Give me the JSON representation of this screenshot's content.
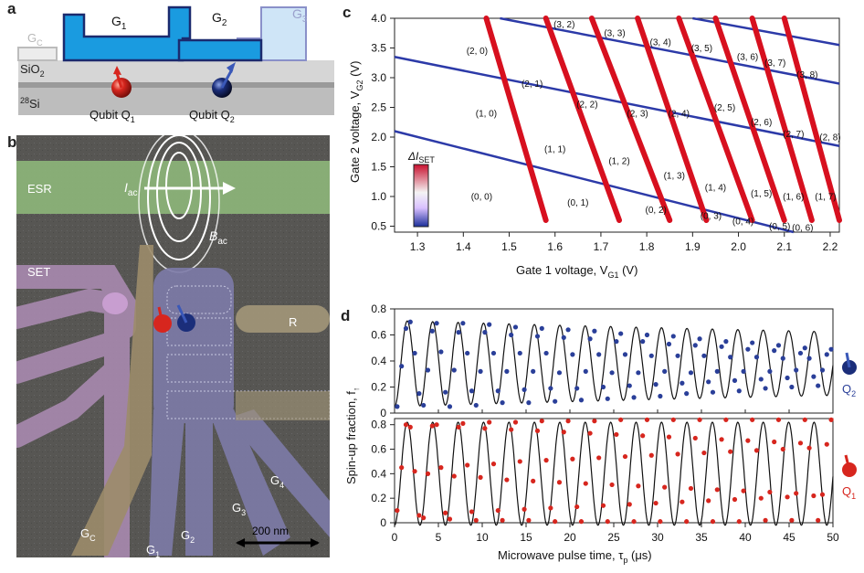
{
  "panels": {
    "a": "a",
    "b": "b",
    "c": "c",
    "d": "d"
  },
  "panel_a": {
    "gates": {
      "G1": "G",
      "G1_sub": "1",
      "G2": "G",
      "G2_sub": "2",
      "G3": "G",
      "G3_sub": "3",
      "GC": "G",
      "GC_sub": "C"
    },
    "oxide": "SiO",
    "oxide_sub": "2",
    "substrate_sup": "28",
    "substrate": "Si",
    "qubit1": "Qubit Q",
    "qubit1_sub": "1",
    "qubit2": "Qubit Q",
    "qubit2_sub": "2",
    "colors": {
      "gate": "#1a9be0",
      "gate_edge": "#1b2a6e",
      "gate3": "#cfe5f7",
      "gate3_edge": "#8a90c9",
      "gc": "#ececec",
      "oxide": "#d6d6d6",
      "si": "#6b6b6b",
      "q1": "#d7261e",
      "q2": "#1b2e7a"
    }
  },
  "panel_b": {
    "labels": {
      "esr": "ESR",
      "iac": "I",
      "iac_sub": "ac",
      "bac": "B",
      "bac_sub": "ac",
      "set": "SET",
      "r": "R",
      "g1": "G",
      "g1_sub": "1",
      "g2": "G",
      "g2_sub": "2",
      "g3": "G",
      "g3_sub": "3",
      "g4": "G",
      "g4_sub": "4",
      "gc": "G",
      "gc_sub": "C"
    },
    "scalebar": "200 nm",
    "colors": {
      "bg": "#575653",
      "esr": "#8cb47a",
      "set": "#a989b0",
      "gc": "#9c8c6a",
      "gates": "#7d7ba8",
      "r": "#9f9477"
    }
  },
  "panel_c": {
    "xlabel": "Gate 1 voltage, V",
    "xlabel_sub": "G1",
    "xlabel_unit": " (V)",
    "ylabel": "Gate 2 voltage, V",
    "ylabel_sub": "G2",
    "ylabel_unit": " (V)",
    "xticks": [
      "1.3",
      "1.4",
      "1.5",
      "1.6",
      "1.7",
      "1.8",
      "1.9",
      "2.0",
      "2.1",
      "2.2"
    ],
    "yticks": [
      "0.5",
      "1.0",
      "1.5",
      "2.0",
      "2.5",
      "3.0",
      "3.5",
      "4.0"
    ],
    "colorbar_label": "ΔI",
    "colorbar_sub": "SET",
    "charge_states": [
      "(0, 0)",
      "(1, 0)",
      "(2, 0)",
      "(0, 1)",
      "(1, 1)",
      "(2, 1)",
      "(3, 2)",
      "(0, 2)",
      "(1, 2)",
      "(2, 2)",
      "(3, 3)",
      "(0, 3)",
      "(1, 3)",
      "(2, 3)",
      "(3, 4)",
      "(0, 4)",
      "(1, 4)",
      "(2, 4)",
      "(3, 5)",
      "(0, 5)",
      "(1, 5)",
      "(2, 5)",
      "(3, 6)",
      "(0, 6)",
      "(1, 6)",
      "(2, 6)",
      "(3, 7)",
      "(1, 7)",
      "(2, 7)",
      "(3, 8)",
      "(2, 8)"
    ]
  },
  "panel_d": {
    "xlabel": "Microwave pulse time, τ",
    "xlabel_sub": "p",
    "xlabel_unit": " (μs)",
    "ylabel": "Spin-up fraction, f",
    "ylabel_sub": "↑",
    "xticks": [
      "0",
      "5",
      "10",
      "15",
      "20",
      "25",
      "30",
      "35",
      "40",
      "45",
      "50"
    ],
    "yticks_top": [
      "0",
      "0.2",
      "0.4",
      "0.6",
      "0.8"
    ],
    "yticks_bottom": [
      "0",
      "0.2",
      "0.4",
      "0.6",
      "0.8"
    ],
    "q2_label": "Q",
    "q2_sub": "2",
    "q1_label": "Q",
    "q1_sub": "1",
    "colors": {
      "q2": "#2a3f99",
      "q1": "#d7261e"
    }
  },
  "chart_data": [
    {
      "type": "heatmap",
      "title": "",
      "xlabel": "Gate 1 voltage, V_G1 (V)",
      "ylabel": "Gate 2 voltage, V_G2 (V)",
      "xlim": [
        1.25,
        2.22
      ],
      "ylim": [
        0.4,
        4.0
      ],
      "charge_state_labels": [
        "(0, 0)",
        "(1, 0)",
        "(2, 0)",
        "(0, 1)",
        "(1, 1)",
        "(2, 1)",
        "(3, 2)",
        "(0, 2)",
        "(1, 2)",
        "(2, 2)",
        "(3, 3)",
        "(0, 3)",
        "(1, 3)",
        "(2, 3)",
        "(3, 4)",
        "(0, 4)",
        "(1, 4)",
        "(2, 4)",
        "(3, 5)",
        "(0, 5)",
        "(1, 5)",
        "(2, 5)",
        "(3, 6)",
        "(0, 6)",
        "(1, 6)",
        "(2, 6)",
        "(3, 7)",
        "(1, 7)",
        "(2, 7)",
        "(3, 8)",
        "(2, 8)"
      ],
      "transition_lines_q1": [
        {
          "x": [
            1.58,
            1.45
          ],
          "y": [
            0.6,
            4.0
          ]
        },
        {
          "x": [
            1.74,
            1.58
          ],
          "y": [
            0.6,
            4.0
          ]
        },
        {
          "x": [
            1.85,
            1.68
          ],
          "y": [
            0.6,
            4.0
          ]
        },
        {
          "x": [
            1.93,
            1.78
          ],
          "y": [
            0.6,
            4.0
          ]
        },
        {
          "x": [
            2.03,
            1.87
          ],
          "y": [
            0.6,
            4.0
          ]
        },
        {
          "x": [
            2.1,
            1.95
          ],
          "y": [
            0.6,
            4.0
          ]
        },
        {
          "x": [
            2.16,
            2.03
          ],
          "y": [
            0.6,
            4.0
          ]
        },
        {
          "x": [
            2.22,
            2.1
          ],
          "y": [
            0.6,
            4.0
          ]
        }
      ],
      "transition_lines_q2": [
        {
          "x": [
            1.25,
            2.12
          ],
          "y": [
            2.1,
            0.4
          ]
        },
        {
          "x": [
            1.25,
            2.22
          ],
          "y": [
            3.35,
            1.85
          ]
        },
        {
          "x": [
            1.48,
            2.22
          ],
          "y": [
            4.0,
            2.9
          ]
        },
        {
          "x": [
            1.9,
            2.22
          ],
          "y": [
            4.0,
            3.55
          ]
        }
      ],
      "colorbar": "ΔI_SET (blue–white–red)"
    },
    {
      "type": "line",
      "title": "",
      "xlabel": "Microwave pulse time, τ_p (μs)",
      "ylabel": "Spin-up fraction, f_↑",
      "xlim": [
        0,
        50
      ],
      "subplots": [
        {
          "name": "Q2",
          "ylim": [
            0,
            0.8
          ],
          "model": {
            "offset": 0.38,
            "amplitude": 0.33,
            "period": 2.9,
            "decay": 0.006
          },
          "points": {
            "x": [
              0.3,
              0.8,
              1.3,
              1.8,
              2.3,
              2.8,
              3.3,
              3.8,
              4.3,
              4.8,
              5.3,
              5.8,
              6.3,
              6.8,
              7.3,
              7.8,
              8.3,
              8.8,
              9.3,
              9.8,
              10.3,
              10.8,
              11.3,
              11.8,
              12.3,
              12.8,
              13.3,
              13.8,
              14.3,
              14.8,
              15.3,
              15.8,
              16.3,
              16.8,
              17.3,
              17.8,
              18.3,
              18.8,
              19.3,
              19.8,
              20.3,
              20.8,
              21.3,
              21.8,
              22.3,
              22.8,
              23.3,
              23.8,
              24.3,
              24.8,
              25.3,
              25.8,
              26.3,
              26.8,
              27.3,
              27.8,
              28.3,
              28.8,
              29.3,
              29.8,
              30.3,
              30.8,
              31.3,
              31.8,
              32.3,
              32.8,
              33.3,
              33.8,
              34.3,
              34.8,
              35.3,
              35.8,
              36.3,
              36.8,
              37.3,
              37.8,
              38.3,
              38.8,
              39.3,
              39.8,
              40.3,
              40.8,
              41.3,
              41.8,
              42.3,
              42.8,
              43.3,
              43.8,
              44.3,
              44.8,
              45.3,
              45.8,
              46.3,
              46.8,
              47.3,
              47.8,
              48.3,
              48.8,
              49.3,
              49.8
            ],
            "y": [
              0.05,
              0.36,
              0.65,
              0.7,
              0.46,
              0.15,
              0.06,
              0.33,
              0.63,
              0.69,
              0.47,
              0.16,
              0.05,
              0.33,
              0.62,
              0.69,
              0.46,
              0.17,
              0.06,
              0.32,
              0.62,
              0.68,
              0.46,
              0.17,
              0.08,
              0.32,
              0.6,
              0.66,
              0.46,
              0.18,
              0.08,
              0.32,
              0.59,
              0.65,
              0.46,
              0.19,
              0.09,
              0.31,
              0.58,
              0.64,
              0.45,
              0.19,
              0.1,
              0.32,
              0.57,
              0.63,
              0.45,
              0.2,
              0.11,
              0.31,
              0.55,
              0.61,
              0.45,
              0.21,
              0.12,
              0.31,
              0.55,
              0.6,
              0.44,
              0.22,
              0.13,
              0.32,
              0.53,
              0.59,
              0.44,
              0.23,
              0.15,
              0.31,
              0.52,
              0.57,
              0.44,
              0.24,
              0.16,
              0.32,
              0.51,
              0.55,
              0.43,
              0.25,
              0.17,
              0.32,
              0.49,
              0.54,
              0.43,
              0.26,
              0.19,
              0.32,
              0.48,
              0.52,
              0.42,
              0.27,
              0.2,
              0.33,
              0.46,
              0.5,
              0.42,
              0.28,
              0.21,
              0.33,
              0.45,
              0.49
            ]
          }
        },
        {
          "name": "Q1",
          "ylim": [
            0,
            0.85
          ],
          "model": {
            "offset": 0.4,
            "amplitude": 0.42,
            "period": 2.9,
            "decay": 0.0
          },
          "points": {
            "x": [
              0.3,
              0.8,
              1.3,
              1.8,
              2.3,
              2.8,
              3.3,
              3.8,
              4.3,
              4.8,
              5.3,
              5.8,
              6.3,
              6.8,
              7.3,
              7.8,
              8.3,
              8.8,
              9.3,
              9.8,
              10.3,
              10.8,
              11.3,
              11.8,
              12.3,
              12.8,
              13.3,
              13.8,
              14.3,
              14.8,
              15.3,
              15.8,
              16.3,
              16.8,
              17.3,
              17.8,
              18.3,
              18.8,
              19.3,
              19.8,
              20.3,
              20.8,
              21.3,
              21.8,
              22.3,
              22.8,
              23.3,
              23.8,
              24.3,
              24.8,
              25.3,
              25.8,
              26.3,
              26.8,
              27.3,
              27.8,
              28.3,
              28.8,
              29.3,
              29.8,
              30.3,
              30.8,
              31.3,
              31.8,
              32.3,
              32.8,
              33.3,
              33.8,
              34.3,
              34.8,
              35.3,
              35.8,
              36.3,
              36.8,
              37.3,
              37.8,
              38.3,
              38.8,
              39.3,
              39.8,
              40.3,
              40.8,
              41.3,
              41.8,
              42.3,
              42.8,
              43.3,
              43.8,
              44.3,
              44.8,
              45.3,
              45.8,
              46.3,
              46.8,
              47.3,
              47.8,
              48.3,
              48.8,
              49.3,
              49.8
            ],
            "y": [
              0.1,
              0.45,
              0.8,
              0.78,
              0.42,
              0.06,
              0.04,
              0.4,
              0.79,
              0.8,
              0.45,
              0.08,
              0.03,
              0.38,
              0.78,
              0.81,
              0.47,
              0.09,
              0.02,
              0.37,
              0.77,
              0.82,
              0.48,
              0.1,
              0.02,
              0.35,
              0.76,
              0.82,
              0.5,
              0.11,
              0.02,
              0.34,
              0.75,
              0.83,
              0.51,
              0.12,
              0.01,
              0.33,
              0.74,
              0.83,
              0.52,
              0.13,
              0.01,
              0.32,
              0.73,
              0.83,
              0.53,
              0.14,
              0.01,
              0.31,
              0.72,
              0.84,
              0.54,
              0.15,
              0.01,
              0.3,
              0.71,
              0.84,
              0.55,
              0.16,
              0.01,
              0.29,
              0.7,
              0.84,
              0.56,
              0.17,
              0.01,
              0.28,
              0.69,
              0.84,
              0.57,
              0.18,
              0.01,
              0.27,
              0.68,
              0.84,
              0.58,
              0.19,
              0.01,
              0.26,
              0.67,
              0.84,
              0.59,
              0.2,
              0.02,
              0.25,
              0.66,
              0.84,
              0.6,
              0.21,
              0.02,
              0.24,
              0.65,
              0.84,
              0.61,
              0.22,
              0.02,
              0.23,
              0.64,
              0.84
            ]
          }
        }
      ]
    }
  ]
}
